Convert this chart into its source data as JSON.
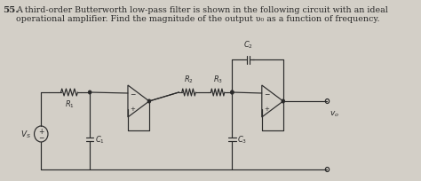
{
  "bg_color": "#d3cfc7",
  "text_color": "#2a2a2a",
  "title_num": "55.",
  "title_line1": "A third-order Butterworth low-pass filter is shown in the following circuit with an ideal",
  "title_line2": "operational amplifier. Find the magnitude of the output υ₀ as a function of frequency.",
  "figsize": [
    4.74,
    2.05
  ],
  "dpi": 100,
  "lw": 0.85
}
